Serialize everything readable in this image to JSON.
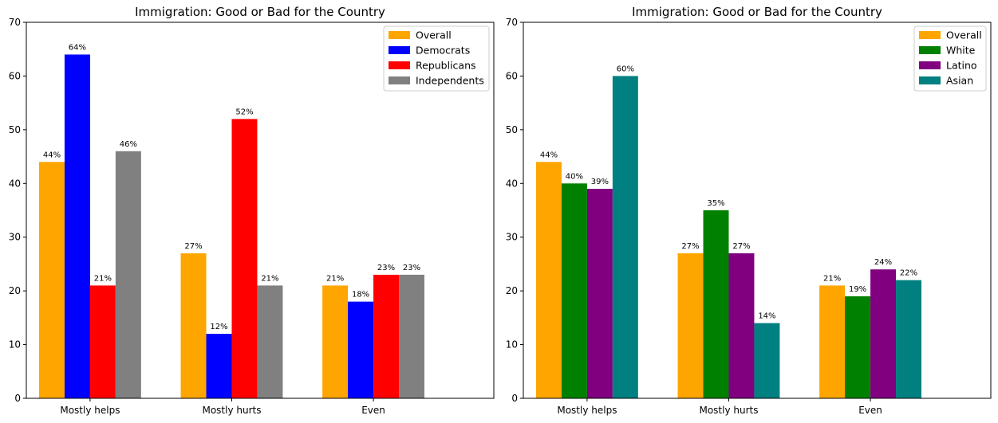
{
  "chart_data": [
    {
      "type": "bar",
      "title": "Immigration: Good or Bad for the Country",
      "xlabel": "",
      "ylabel": "",
      "ylim": [
        0,
        70
      ],
      "yticks": [
        "0",
        "10",
        "20",
        "30",
        "40",
        "50",
        "60",
        "70"
      ],
      "categories": [
        "Mostly helps",
        "Mostly hurts",
        "Even"
      ],
      "legend_position": "top-right",
      "series": [
        {
          "name": "Overall",
          "color": "#FFA500",
          "values": [
            44,
            27,
            21
          ],
          "labels": [
            "44%",
            "27%",
            "21%"
          ]
        },
        {
          "name": "Democrats",
          "color": "#0000FF",
          "values": [
            64,
            12,
            18
          ],
          "labels": [
            "64%",
            "12%",
            "18%"
          ]
        },
        {
          "name": "Republicans",
          "color": "#FF0000",
          "values": [
            21,
            52,
            23
          ],
          "labels": [
            "21%",
            "52%",
            "23%"
          ]
        },
        {
          "name": "Independents",
          "color": "#808080",
          "values": [
            46,
            21,
            23
          ],
          "labels": [
            "46%",
            "21%",
            "23%"
          ]
        }
      ]
    },
    {
      "type": "bar",
      "title": "Immigration: Good or Bad for the Country",
      "xlabel": "",
      "ylabel": "",
      "ylim": [
        0,
        70
      ],
      "yticks": [
        "0",
        "10",
        "20",
        "30",
        "40",
        "50",
        "60",
        "70"
      ],
      "categories": [
        "Mostly helps",
        "Mostly hurts",
        "Even"
      ],
      "legend_position": "top-right",
      "series": [
        {
          "name": "Overall",
          "color": "#FFA500",
          "values": [
            44,
            27,
            21
          ],
          "labels": [
            "44%",
            "27%",
            "21%"
          ]
        },
        {
          "name": "White",
          "color": "#008000",
          "values": [
            40,
            35,
            19
          ],
          "labels": [
            "40%",
            "35%",
            "19%"
          ]
        },
        {
          "name": "Latino",
          "color": "#800080",
          "values": [
            39,
            27,
            24
          ],
          "labels": [
            "39%",
            "27%",
            "24%"
          ]
        },
        {
          "name": "Asian",
          "color": "#008080",
          "values": [
            60,
            14,
            22
          ],
          "labels": [
            "60%",
            "14%",
            "22%"
          ]
        }
      ]
    }
  ]
}
